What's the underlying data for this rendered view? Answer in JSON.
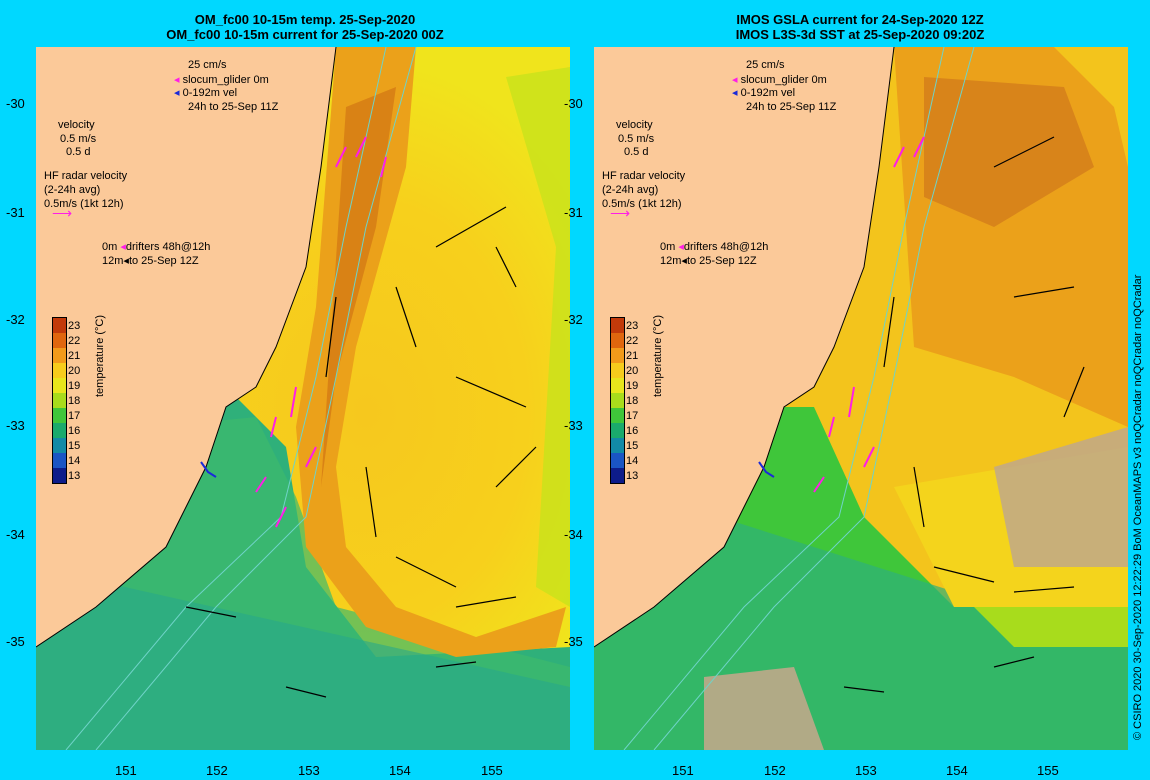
{
  "left_panel": {
    "title_line1": "OM_fc00 10-15m temp. 25-Sep-2020",
    "title_line2": "OM_fc00 10-15m current for 25-Sep-2020 00Z"
  },
  "right_panel": {
    "title_line1": "IMOS GSLA current for 24-Sep-2020 12Z",
    "title_line2": "IMOS L3S-3d SST at 25-Sep-2020 09:20Z"
  },
  "legend": {
    "scale": "25 cm/s",
    "glider": "slocum_glider 0m",
    "glider_vel": "0-192m vel",
    "glider_time": "24h to 25-Sep 11Z",
    "velocity": "velocity",
    "velocity_ms": "0.5 m/s",
    "velocity_d": "0.5 d",
    "hf_title": "HF radar velocity",
    "hf_avg": "(2-24h avg)",
    "hf_scale": "0.5m/s (1kt 12h)",
    "drift_0m": "0m",
    "drift_label": "drifters 48h@12h",
    "drift_12m": "12m",
    "drift_time": "to 25-Sep 12Z"
  },
  "colorbar": {
    "label": "temperature (°C)",
    "ticks": [
      "23",
      "22",
      "21",
      "20",
      "19",
      "18",
      "17",
      "16",
      "15",
      "14",
      "13"
    ],
    "colors": [
      "#c23a0a",
      "#e0660e",
      "#f29a1a",
      "#f7cc1c",
      "#e8e61c",
      "#a8dc1c",
      "#3fc63a",
      "#1aaa6c",
      "#128aa6",
      "#1a55c4",
      "#0d1c8a"
    ]
  },
  "lat_labels": [
    "-30",
    "-31",
    "-32",
    "-33",
    "-34",
    "-35"
  ],
  "lon_labels": [
    "151",
    "152",
    "153",
    "154",
    "155"
  ],
  "side_text": "© CSIRO 2020   30-Sep-2020 12:22:29 BoM OceanMAPS v3 noQCradar noQCradar noQCradar"
}
